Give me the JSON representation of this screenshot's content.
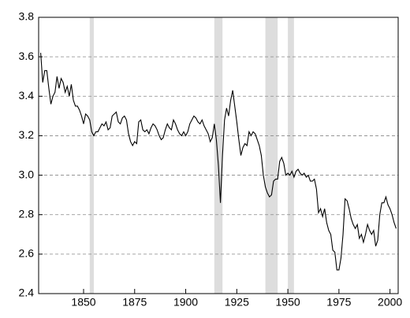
{
  "chart_data": {
    "type": "line",
    "x": [
      1829,
      1830,
      1831,
      1832,
      1833,
      1834,
      1835,
      1836,
      1837,
      1838,
      1839,
      1840,
      1841,
      1842,
      1843,
      1844,
      1845,
      1846,
      1847,
      1848,
      1849,
      1850,
      1851,
      1852,
      1853,
      1854,
      1855,
      1856,
      1857,
      1858,
      1859,
      1860,
      1861,
      1862,
      1863,
      1864,
      1865,
      1866,
      1867,
      1868,
      1869,
      1870,
      1871,
      1872,
      1873,
      1874,
      1875,
      1876,
      1877,
      1878,
      1879,
      1880,
      1881,
      1882,
      1883,
      1884,
      1885,
      1886,
      1887,
      1888,
      1889,
      1890,
      1891,
      1892,
      1893,
      1894,
      1895,
      1896,
      1897,
      1898,
      1899,
      1900,
      1901,
      1902,
      1903,
      1904,
      1905,
      1906,
      1907,
      1908,
      1909,
      1910,
      1911,
      1912,
      1913,
      1914,
      1915,
      1916,
      1917,
      1918,
      1919,
      1920,
      1921,
      1922,
      1923,
      1924,
      1925,
      1926,
      1927,
      1928,
      1929,
      1930,
      1931,
      1932,
      1933,
      1934,
      1935,
      1936,
      1937,
      1938,
      1939,
      1940,
      1941,
      1942,
      1943,
      1944,
      1945,
      1946,
      1947,
      1948,
      1949,
      1950,
      1951,
      1952,
      1953,
      1954,
      1955,
      1956,
      1957,
      1958,
      1959,
      1960,
      1961,
      1962,
      1963,
      1964,
      1965,
      1966,
      1967,
      1968,
      1969,
      1970,
      1971,
      1972,
      1973,
      1974,
      1975,
      1976,
      1977,
      1978,
      1979,
      1980,
      1981,
      1982,
      1983,
      1984,
      1985,
      1986,
      1987,
      1988,
      1989,
      1990,
      1991,
      1992,
      1993,
      1994,
      1995,
      1996,
      1997,
      1998,
      1999,
      2000,
      2001,
      2002,
      2003
    ],
    "series": [
      {
        "color": "#000000",
        "values": [
          3.62,
          3.47,
          3.53,
          3.53,
          3.44,
          3.36,
          3.4,
          3.42,
          3.5,
          3.44,
          3.49,
          3.47,
          3.42,
          3.45,
          3.4,
          3.46,
          3.38,
          3.35,
          3.35,
          3.33,
          3.3,
          3.26,
          3.31,
          3.3,
          3.28,
          3.22,
          3.2,
          3.22,
          3.22,
          3.24,
          3.26,
          3.25,
          3.27,
          3.23,
          3.24,
          3.3,
          3.31,
          3.32,
          3.27,
          3.26,
          3.29,
          3.3,
          3.28,
          3.21,
          3.17,
          3.15,
          3.17,
          3.16,
          3.27,
          3.28,
          3.23,
          3.22,
          3.23,
          3.21,
          3.24,
          3.26,
          3.25,
          3.23,
          3.2,
          3.18,
          3.19,
          3.23,
          3.26,
          3.24,
          3.23,
          3.28,
          3.26,
          3.23,
          3.21,
          3.2,
          3.22,
          3.2,
          3.22,
          3.26,
          3.28,
          3.3,
          3.29,
          3.27,
          3.26,
          3.28,
          3.25,
          3.23,
          3.21,
          3.17,
          3.19,
          3.26,
          3.18,
          3.05,
          2.86,
          3.1,
          3.28,
          3.34,
          3.3,
          3.38,
          3.43,
          3.35,
          3.27,
          3.18,
          3.1,
          3.14,
          3.16,
          3.15,
          3.22,
          3.2,
          3.22,
          3.21,
          3.18,
          3.15,
          3.1,
          3.0,
          2.94,
          2.91,
          2.89,
          2.9,
          2.97,
          2.98,
          2.98,
          3.07,
          3.09,
          3.06,
          3.0,
          3.01,
          3.0,
          3.02,
          2.99,
          3.02,
          3.03,
          3.01,
          3.0,
          3.01,
          2.99,
          3.0,
          2.97,
          2.97,
          2.98,
          2.93,
          2.81,
          2.83,
          2.79,
          2.83,
          2.76,
          2.72,
          2.7,
          2.62,
          2.61,
          2.52,
          2.52,
          2.58,
          2.7,
          2.88,
          2.87,
          2.83,
          2.78,
          2.75,
          2.73,
          2.75,
          2.68,
          2.7,
          2.66,
          2.7,
          2.75,
          2.72,
          2.7,
          2.72,
          2.64,
          2.67,
          2.8,
          2.86,
          2.86,
          2.89,
          2.85,
          2.83,
          2.8,
          2.76,
          2.73
        ]
      }
    ],
    "shaded_periods": [
      [
        1853,
        1855
      ],
      [
        1914,
        1918
      ],
      [
        1939,
        1945
      ],
      [
        1950,
        1953
      ]
    ],
    "shade_color": "#dddddd",
    "xlim": [
      1828,
      2004
    ],
    "xticks": [
      1850,
      1875,
      1900,
      1925,
      1950,
      1975,
      2000
    ],
    "ylim": [
      2.4,
      3.8
    ],
    "yticks": [
      2.4,
      2.6,
      2.8,
      {
        "value": 3,
        "label": "3.0"
      },
      3.2,
      3.4,
      3.6,
      3.8
    ],
    "grid": true
  }
}
